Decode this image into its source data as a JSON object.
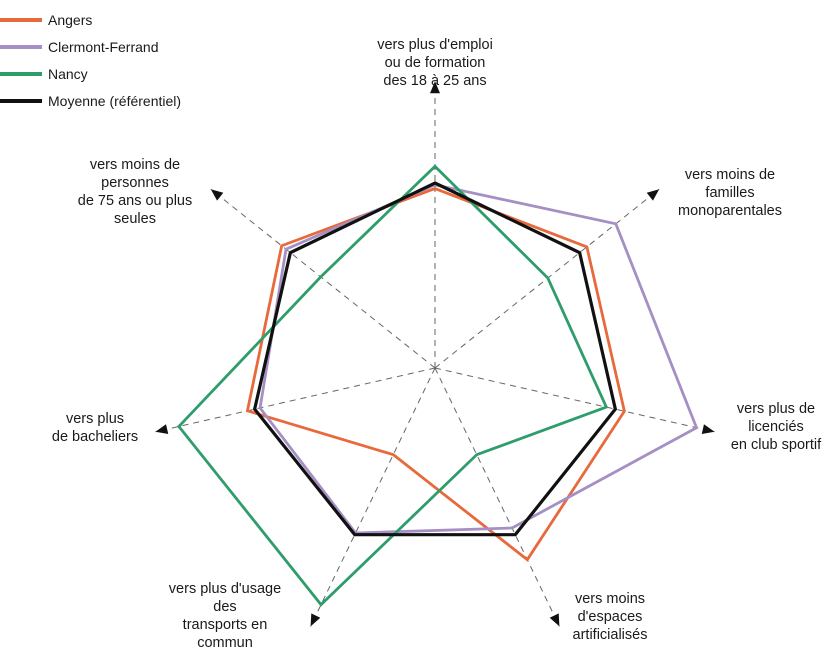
{
  "chart_data": {
    "type": "radar",
    "axes": [
      [
        "vers plus d'emploi",
        "ou de formation",
        "des 18 à 25 ans"
      ],
      [
        "vers moins de",
        "familles",
        "monoparentales"
      ],
      [
        "vers plus de",
        "licenciés",
        "en club sportif"
      ],
      [
        "vers moins",
        "d'espaces",
        "artificialisés"
      ],
      [
        "vers plus d'usage",
        "des",
        "transports en",
        "commun"
      ],
      [
        "vers plus",
        "de bacheliers"
      ],
      [
        "vers moins de",
        "personnes",
        "de 75 ans ou plus",
        "seules"
      ]
    ],
    "series": [
      {
        "name": "Angers",
        "color": "#e8693c",
        "values": [
          0.97,
          1.05,
          1.05,
          1.15,
          0.52,
          1.04,
          1.06
        ]
      },
      {
        "name": "Clermont-Ferrand",
        "color": "#a58fc4",
        "values": [
          0.99,
          1.25,
          1.45,
          0.96,
          0.99,
          0.97,
          1.03
        ]
      },
      {
        "name": "Nancy",
        "color": "#2e9d6b",
        "values": [
          1.09,
          0.78,
          0.95,
          0.52,
          1.42,
          1.42,
          0.79
        ]
      },
      {
        "name": "Moyenne (référentiel)",
        "color": "#111111",
        "values": [
          1.0,
          1.0,
          1.0,
          1.0,
          1.0,
          1.0,
          1.0
        ]
      }
    ],
    "grid": true,
    "legend_position": "top-left"
  }
}
